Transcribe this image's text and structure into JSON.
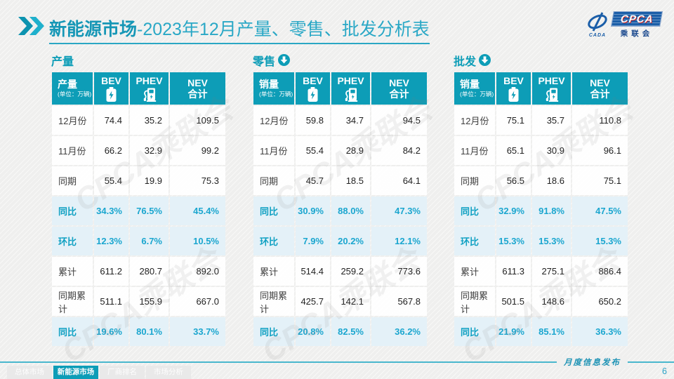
{
  "header": {
    "title_bold": "新能源市场",
    "title_rest": "-2023年12月产量、零售、批发分析表",
    "logo": {
      "acronym": "CPCA",
      "cn": "乘联会",
      "sub": "CADA"
    }
  },
  "columns": [
    {
      "label": "BEV",
      "icon": "battery-icon"
    },
    {
      "label": "PHEV",
      "icon": "charger-icon"
    },
    {
      "label": "NEV",
      "sub": "合计"
    }
  ],
  "tables": [
    {
      "section_title": "产量",
      "has_arrow": false,
      "corner_label": "产量",
      "unit": "(单位：万辆)",
      "rows": [
        {
          "label": "12月份",
          "highlight": false,
          "values": [
            "74.4",
            "35.2",
            "109.5"
          ]
        },
        {
          "label": "11月份",
          "highlight": false,
          "values": [
            "66.2",
            "32.9",
            "99.2"
          ]
        },
        {
          "label": "同期",
          "highlight": false,
          "values": [
            "55.4",
            "19.9",
            "75.3"
          ]
        },
        {
          "label": "同比",
          "highlight": true,
          "values": [
            "34.3%",
            "76.5%",
            "45.4%"
          ]
        },
        {
          "label": "环比",
          "highlight": true,
          "values": [
            "12.3%",
            "6.7%",
            "10.5%"
          ]
        },
        {
          "label": "累计",
          "highlight": false,
          "values": [
            "611.2",
            "280.7",
            "892.0"
          ]
        },
        {
          "label": "同期累计",
          "highlight": false,
          "values": [
            "511.1",
            "155.9",
            "667.0"
          ]
        },
        {
          "label": "同比",
          "highlight": true,
          "values": [
            "19.6%",
            "80.1%",
            "33.7%"
          ]
        }
      ]
    },
    {
      "section_title": "零售",
      "has_arrow": true,
      "corner_label": "销量",
      "unit": "(单位：万辆)",
      "rows": [
        {
          "label": "12月份",
          "highlight": false,
          "values": [
            "59.8",
            "34.7",
            "94.5"
          ]
        },
        {
          "label": "11月份",
          "highlight": false,
          "values": [
            "55.4",
            "28.9",
            "84.2"
          ]
        },
        {
          "label": "同期",
          "highlight": false,
          "values": [
            "45.7",
            "18.5",
            "64.1"
          ]
        },
        {
          "label": "同比",
          "highlight": true,
          "values": [
            "30.9%",
            "88.0%",
            "47.3%"
          ]
        },
        {
          "label": "环比",
          "highlight": true,
          "values": [
            "7.9%",
            "20.2%",
            "12.1%"
          ]
        },
        {
          "label": "累计",
          "highlight": false,
          "values": [
            "514.4",
            "259.2",
            "773.6"
          ]
        },
        {
          "label": "同期累计",
          "highlight": false,
          "values": [
            "425.7",
            "142.1",
            "567.8"
          ]
        },
        {
          "label": "同比",
          "highlight": true,
          "values": [
            "20.8%",
            "82.5%",
            "36.2%"
          ]
        }
      ]
    },
    {
      "section_title": "批发",
      "has_arrow": true,
      "corner_label": "销量",
      "unit": "(单位：万辆)",
      "rows": [
        {
          "label": "12月份",
          "highlight": false,
          "values": [
            "75.1",
            "35.7",
            "110.8"
          ]
        },
        {
          "label": "11月份",
          "highlight": false,
          "values": [
            "65.1",
            "30.9",
            "96.1"
          ]
        },
        {
          "label": "同期",
          "highlight": false,
          "values": [
            "56.5",
            "18.6",
            "75.1"
          ]
        },
        {
          "label": "同比",
          "highlight": true,
          "values": [
            "32.9%",
            "91.8%",
            "47.5%"
          ]
        },
        {
          "label": "环比",
          "highlight": true,
          "values": [
            "15.3%",
            "15.3%",
            "15.3%"
          ]
        },
        {
          "label": "累计",
          "highlight": false,
          "values": [
            "611.3",
            "275.1",
            "886.4"
          ]
        },
        {
          "label": "同期累计",
          "highlight": false,
          "values": [
            "501.5",
            "148.6",
            "650.2"
          ]
        },
        {
          "label": "同比",
          "highlight": true,
          "values": [
            "21.9%",
            "85.1%",
            "36.3%"
          ]
        }
      ]
    }
  ],
  "footer": {
    "tabs": [
      {
        "label": "总体市场",
        "active": false
      },
      {
        "label": "新能源市场",
        "active": true
      },
      {
        "label": "厂商排名",
        "active": false
      },
      {
        "label": "市场分析",
        "active": false
      }
    ],
    "note": "月度信息发布",
    "page": "6"
  },
  "watermark": "CPCA乘联会",
  "colors": {
    "teal": "#0d9db7",
    "accent_text": "#1ba6cf",
    "highlight_row_bg": "#e4f1f8",
    "logo_blue": "#1b5ea8",
    "logo_red": "#c22020",
    "footer_line": "#49b7cd"
  }
}
